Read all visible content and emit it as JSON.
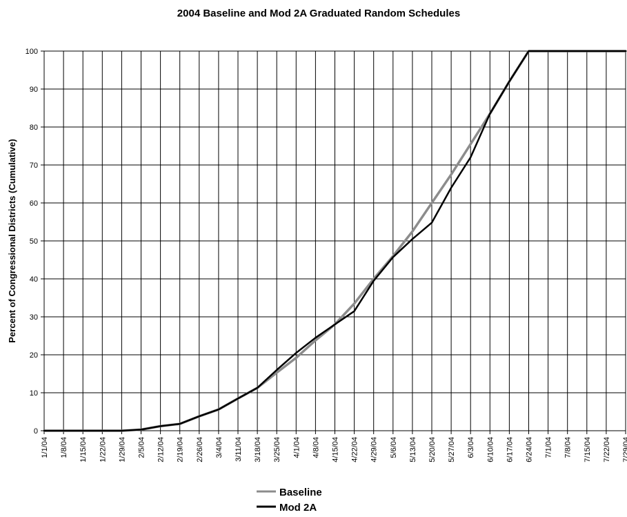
{
  "chart_data": {
    "type": "line",
    "title": "2004 Baseline and Mod 2A Graduated Random Schedules",
    "xlabel": "",
    "ylabel": "Percent of Congressional Districts (Cumulative)",
    "ylim": [
      0,
      100
    ],
    "yticks": [
      "0",
      "10",
      "20",
      "30",
      "40",
      "50",
      "60",
      "70",
      "80",
      "90",
      "100"
    ],
    "categories": [
      "1/1/04",
      "1/8/04",
      "1/15/04",
      "1/22/04",
      "1/29/04",
      "2/5/04",
      "2/12/04",
      "2/19/04",
      "2/26/04",
      "3/4/04",
      "3/11/04",
      "3/18/04",
      "3/25/04",
      "4/1/04",
      "4/8/04",
      "4/15/04",
      "4/22/04",
      "4/29/04",
      "5/6/04",
      "5/13/04",
      "5/20/04",
      "5/27/04",
      "6/3/04",
      "6/10/04",
      "6/17/04",
      "6/24/04",
      "7/1/04",
      "7/8/04",
      "7/15/04",
      "7/22/04",
      "7/29/04"
    ],
    "grid": true,
    "legend_position": "bottom",
    "series": [
      {
        "name": "Baseline",
        "color": "#8c8c8c",
        "values": [
          0,
          0,
          0,
          0,
          0,
          0.3,
          1.2,
          1.8,
          3.8,
          5.6,
          8.5,
          11.3,
          15.3,
          19.2,
          23.8,
          28,
          33.5,
          40,
          46,
          52.5,
          60,
          67.5,
          75.5,
          83.5,
          92,
          100,
          100,
          100,
          100,
          100,
          100
        ]
      },
      {
        "name": "Mod 2A",
        "color": "#000000",
        "values": [
          0,
          0,
          0,
          0,
          0,
          0.3,
          1.2,
          1.8,
          3.8,
          5.6,
          8.5,
          11.3,
          16,
          20.5,
          24.5,
          28,
          31.5,
          39.5,
          45.7,
          50.5,
          54.8,
          64,
          72,
          83.5,
          92,
          100,
          100,
          100,
          100,
          100,
          100
        ]
      }
    ]
  }
}
